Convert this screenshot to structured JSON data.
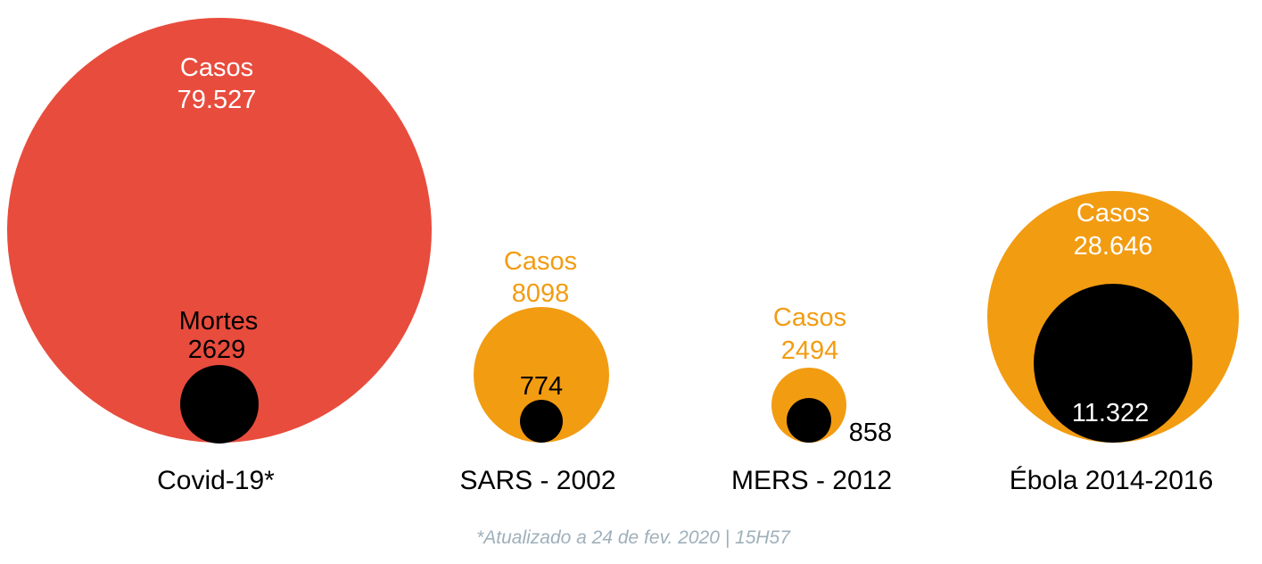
{
  "chart_data": {
    "type": "proportional-area-circles",
    "title": "",
    "colors": {
      "covid": "#e84c3d",
      "others": "#f29c12",
      "deaths": "#000000",
      "footnote": "#9fb0bb"
    },
    "series": [
      {
        "name": "Covid-19*",
        "cases_label": "Casos",
        "cases": 79527,
        "cases_text": "79.527",
        "deaths_label": "Mortes",
        "deaths": 2629,
        "deaths_text": "2629"
      },
      {
        "name": "SARS - 2002",
        "cases_label": "Casos",
        "cases": 8098,
        "cases_text": "8098",
        "deaths": 774,
        "deaths_text": "774"
      },
      {
        "name": "MERS - 2012",
        "cases_label": "Casos",
        "cases": 2494,
        "cases_text": "2494",
        "deaths": 858,
        "deaths_text": "858"
      },
      {
        "name": "Ébola 2014-2016",
        "cases_label": "Casos",
        "cases": 28646,
        "cases_text": "28.646",
        "deaths": 11322,
        "deaths_text": "11.322"
      }
    ],
    "footnote": "*Atualizado a 24 de fev. 2020 | 15H57"
  }
}
